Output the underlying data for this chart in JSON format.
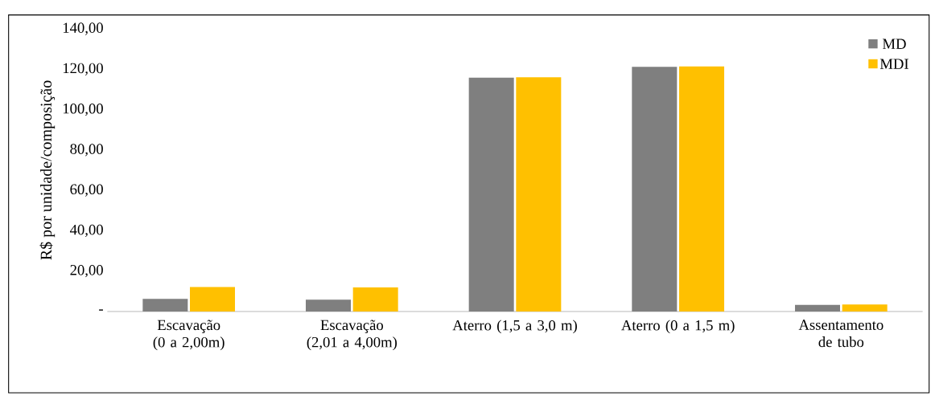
{
  "chart_data": {
    "type": "bar",
    "ylabel": "R$ por unidade/composição",
    "categories": [
      "Escavação (0 a 2,00m)",
      "Escavação (2,01 a 4,00m)",
      "Aterro (1,5 a 3,0 m)",
      "Aterro (0 a 1,5 m)",
      "Assentamento de tubo"
    ],
    "series": [
      {
        "name": "MD",
        "color": "#7f7f7f",
        "values": [
          6.3,
          5.9,
          115.8,
          121.2,
          3.3
        ]
      },
      {
        "name": "MDI",
        "color": "#ffc000",
        "values": [
          12.1,
          11.9,
          116.0,
          121.4,
          3.5
        ]
      }
    ],
    "ylim": [
      0,
      140
    ],
    "yticks": [
      {
        "value": 0,
        "label": "-"
      },
      {
        "value": 20,
        "label": "20,00"
      },
      {
        "value": 40,
        "label": "40,00"
      },
      {
        "value": 60,
        "label": "60,00"
      },
      {
        "value": 80,
        "label": "80,00"
      },
      {
        "value": 100,
        "label": "100,00"
      },
      {
        "value": 120,
        "label": "120,00"
      },
      {
        "value": 140,
        "label": "140,00"
      }
    ],
    "legend": "top right"
  }
}
